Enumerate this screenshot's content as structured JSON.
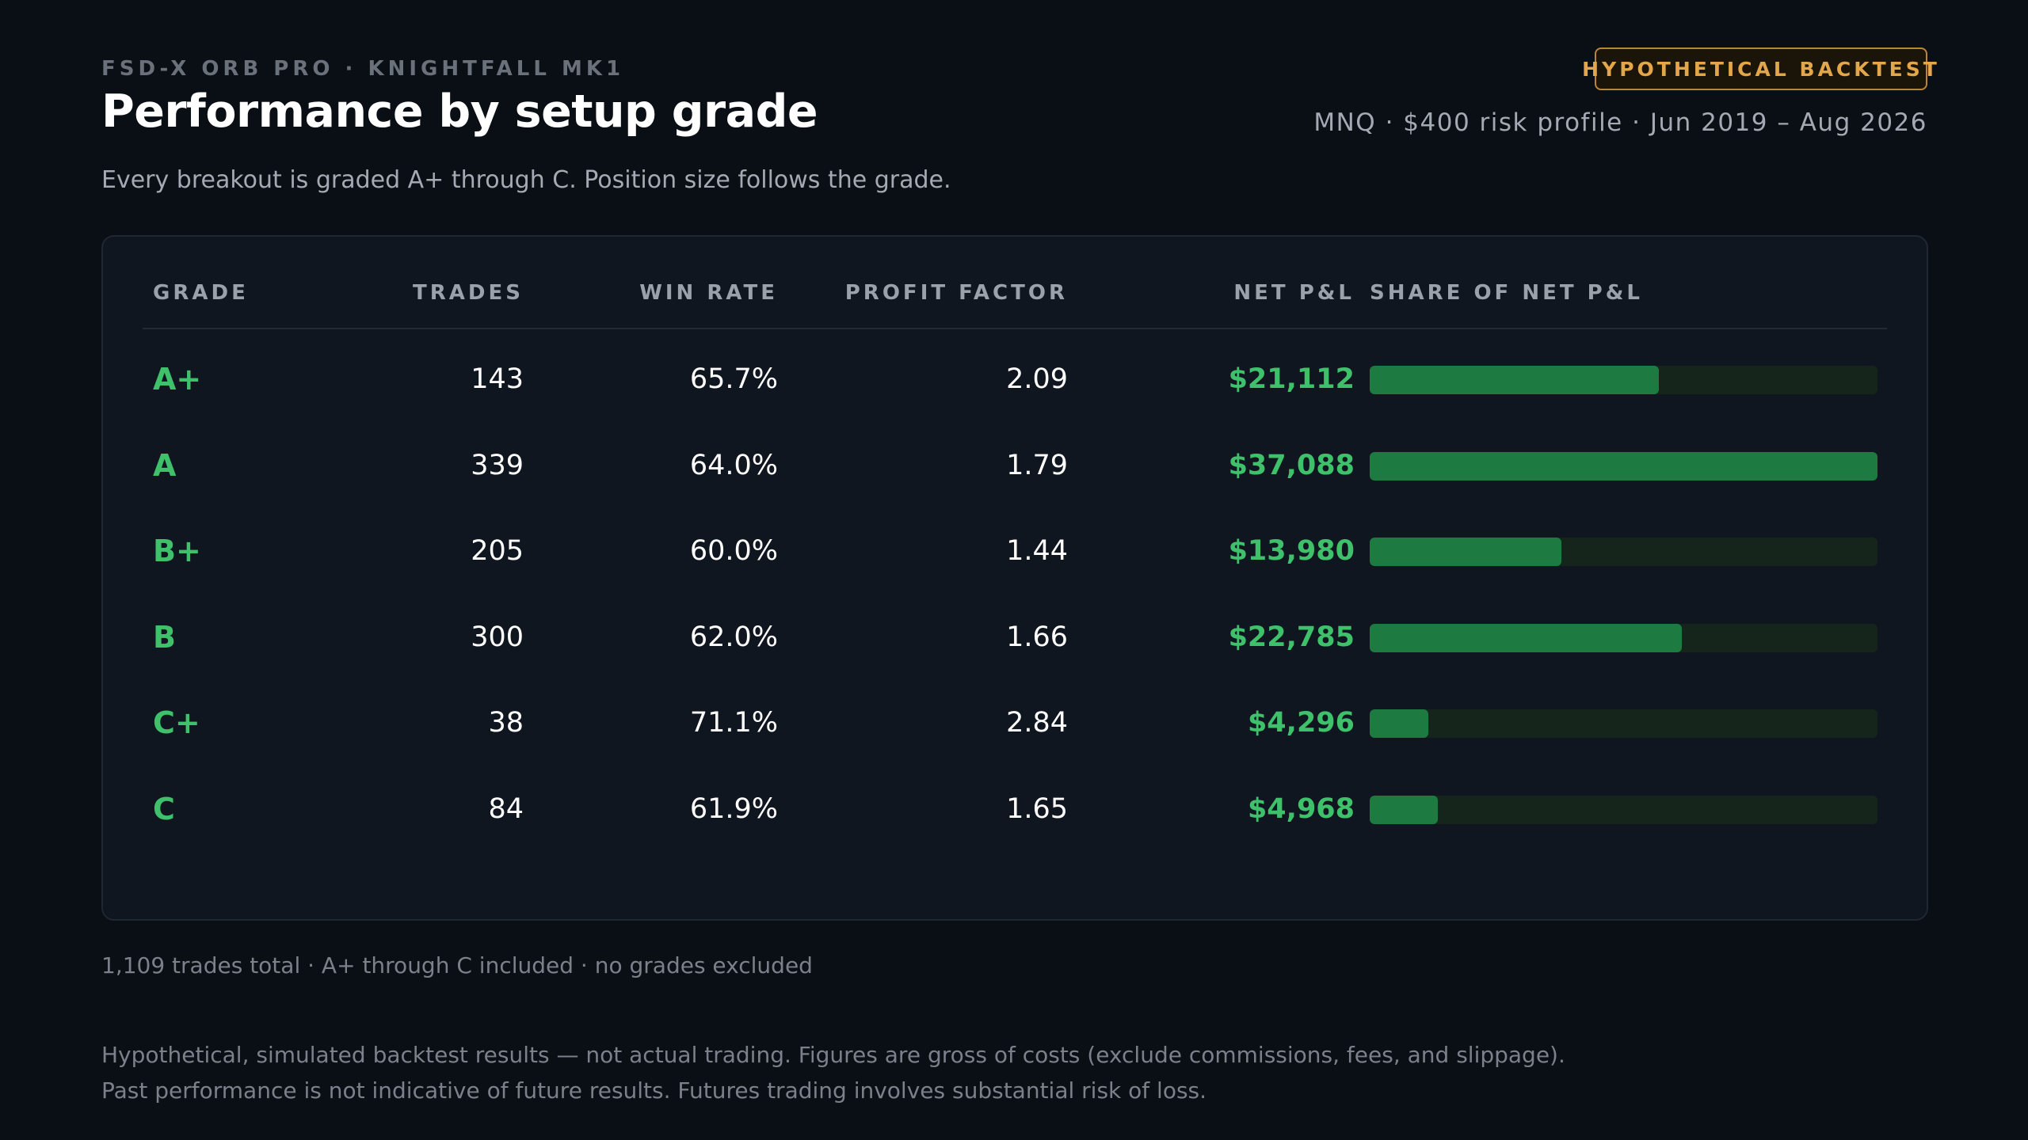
{
  "header": {
    "eyebrow": "FSD-X ORB PRO · KNIGHTFALL MK1",
    "title": "Performance by setup grade",
    "subtitle": "Every breakout is graded A+ through C. Position size follows the grade.",
    "badge": "HYPOTHETICAL BACKTEST",
    "meta": "MNQ · $400 risk profile · Jun 2019 – Aug 2026"
  },
  "table": {
    "columns": {
      "grade": "GRADE",
      "trades": "TRADES",
      "win_rate": "WIN RATE",
      "profit_factor": "PROFIT FACTOR",
      "net_pnl": "NET P&L",
      "share": "SHARE OF NET P&L"
    },
    "rows": [
      {
        "grade": "A+",
        "trades": "143",
        "win_rate": "65.7%",
        "profit_factor": "2.09",
        "net_pnl": "$21,112",
        "share_of_max": 0.569
      },
      {
        "grade": "A",
        "trades": "339",
        "win_rate": "64.0%",
        "profit_factor": "1.79",
        "net_pnl": "$37,088",
        "share_of_max": 1.0
      },
      {
        "grade": "B+",
        "trades": "205",
        "win_rate": "60.0%",
        "profit_factor": "1.44",
        "net_pnl": "$13,980",
        "share_of_max": 0.377
      },
      {
        "grade": "B",
        "trades": "300",
        "win_rate": "62.0%",
        "profit_factor": "1.66",
        "net_pnl": "$22,785",
        "share_of_max": 0.614
      },
      {
        "grade": "C+",
        "trades": "38",
        "win_rate": "71.1%",
        "profit_factor": "2.84",
        "net_pnl": "$4,296",
        "share_of_max": 0.116
      },
      {
        "grade": "C",
        "trades": "84",
        "win_rate": "61.9%",
        "profit_factor": "1.65",
        "net_pnl": "$4,968",
        "share_of_max": 0.134
      }
    ]
  },
  "summary": "1,109 trades total · A+ through C included · no grades excluded",
  "disclaimer": [
    "Hypothetical, simulated backtest results — not actual trading. Figures are gross of costs (exclude commissions, fees, and slippage).",
    "Past performance is not indicative of future results. Futures trading involves substantial risk of loss."
  ],
  "colors": {
    "background": "#0a0e15",
    "card": "#101620",
    "accent_green": "#3ec16a",
    "bar_fill": "#1d7b41",
    "bar_track": "#16251c",
    "badge_amber": "#e3a64a"
  }
}
